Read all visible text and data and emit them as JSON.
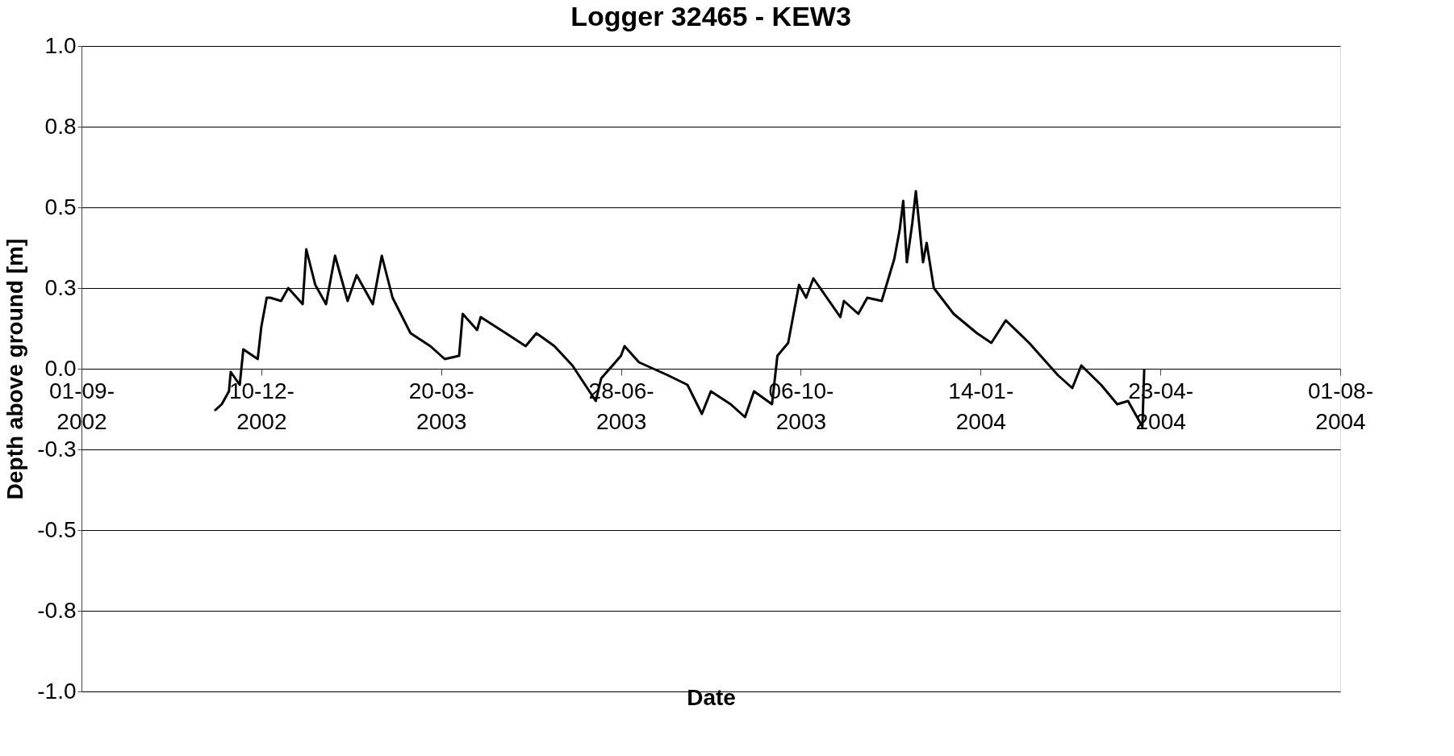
{
  "chart_data": {
    "type": "line",
    "title": "Logger 32465 - KEW3",
    "xlabel": "Date",
    "ylabel": "Depth above ground [m]",
    "x": [
      "2002-11-14",
      "2002-11-18",
      "2002-11-22",
      "2002-11-23",
      "2002-11-28",
      "2002-11-30",
      "2002-12-08",
      "2002-12-10",
      "2002-12-13",
      "2002-12-15",
      "2002-12-21",
      "2002-12-25",
      "2003-01-02",
      "2003-01-04",
      "2003-01-09",
      "2003-01-15",
      "2003-01-20",
      "2003-01-27",
      "2003-02-01",
      "2003-02-10",
      "2003-02-15",
      "2003-02-21",
      "2003-03-03",
      "2003-03-14",
      "2003-03-22",
      "2003-03-30",
      "2003-04-01",
      "2003-04-09",
      "2003-04-11",
      "2003-04-25",
      "2003-05-06",
      "2003-05-12",
      "2003-05-22",
      "2003-06-01",
      "2003-06-14",
      "2003-06-17",
      "2003-06-28",
      "2003-06-30",
      "2003-07-08",
      "2003-07-24",
      "2003-08-04",
      "2003-08-12",
      "2003-08-17",
      "2003-08-28",
      "2003-09-05",
      "2003-09-10",
      "2003-09-20",
      "2003-09-23",
      "2003-09-29",
      "2003-10-05",
      "2003-10-09",
      "2003-10-13",
      "2003-10-28",
      "2003-10-30",
      "2003-11-07",
      "2003-11-12",
      "2003-11-20",
      "2003-11-27",
      "2003-11-30",
      "2003-12-02",
      "2003-12-04",
      "2003-12-07",
      "2003-12-09",
      "2003-12-13",
      "2003-12-15",
      "2003-12-19",
      "2003-12-30",
      "2004-01-12",
      "2004-01-20",
      "2004-01-28",
      "2004-02-10",
      "2004-02-26",
      "2004-03-05",
      "2004-03-10",
      "2004-03-21",
      "2004-03-30",
      "2004-04-05",
      "2004-04-12",
      "2004-04-13",
      "2004-04-14"
    ],
    "series": [
      {
        "color": "#000000",
        "values": [
          -0.13,
          -0.11,
          -0.07,
          -0.01,
          -0.05,
          0.06,
          0.03,
          0.13,
          0.22,
          0.22,
          0.21,
          0.25,
          0.2,
          0.37,
          0.26,
          0.2,
          0.35,
          0.21,
          0.29,
          0.2,
          0.35,
          0.22,
          0.11,
          0.07,
          0.03,
          0.04,
          0.17,
          0.12,
          0.16,
          0.11,
          0.07,
          0.11,
          0.07,
          0.01,
          -0.1,
          -0.03,
          0.04,
          0.07,
          0.02,
          -0.02,
          -0.05,
          -0.14,
          -0.07,
          -0.11,
          -0.15,
          -0.07,
          -0.11,
          0.04,
          0.08,
          0.26,
          0.22,
          0.28,
          0.16,
          0.21,
          0.17,
          0.22,
          0.21,
          0.34,
          0.43,
          0.52,
          0.33,
          0.45,
          0.55,
          0.33,
          0.39,
          0.25,
          0.17,
          0.11,
          0.08,
          0.15,
          0.08,
          -0.02,
          -0.06,
          0.01,
          -0.05,
          -0.11,
          -0.1,
          -0.17,
          -0.18,
          0.0
        ]
      }
    ],
    "xlim": [
      "2002-09-01",
      "2004-08-01"
    ],
    "xticks": [
      {
        "value": "2002-09-01",
        "label": "01-09-2002"
      },
      {
        "value": "2002-12-10",
        "label": "10-12-2002"
      },
      {
        "value": "2003-03-20",
        "label": "20-03-2003"
      },
      {
        "value": "2003-06-28",
        "label": "28-06-2003"
      },
      {
        "value": "2003-10-06",
        "label": "06-10-2003"
      },
      {
        "value": "2004-01-14",
        "label": "14-01-2004"
      },
      {
        "value": "2004-04-23",
        "label": "23-04-2004"
      },
      {
        "value": "2004-08-01",
        "label": "01-08-2004"
      }
    ],
    "ylim": [
      -1.0,
      1.0
    ],
    "yticks": [
      {
        "value": -1.0,
        "label": "-1.0"
      },
      {
        "value": -0.75,
        "label": "-0.8"
      },
      {
        "value": -0.5,
        "label": "-0.5"
      },
      {
        "value": -0.25,
        "label": "-0.3"
      },
      {
        "value": 0,
        "label": "0.0"
      },
      {
        "value": 0.25,
        "label": "0.3"
      },
      {
        "value": 0.5,
        "label": "0.5"
      },
      {
        "value": 0.75,
        "label": "0.8"
      },
      {
        "value": 1.0,
        "label": "1.0"
      }
    ],
    "grid": "y",
    "marker": "none",
    "line_style": "solid"
  }
}
